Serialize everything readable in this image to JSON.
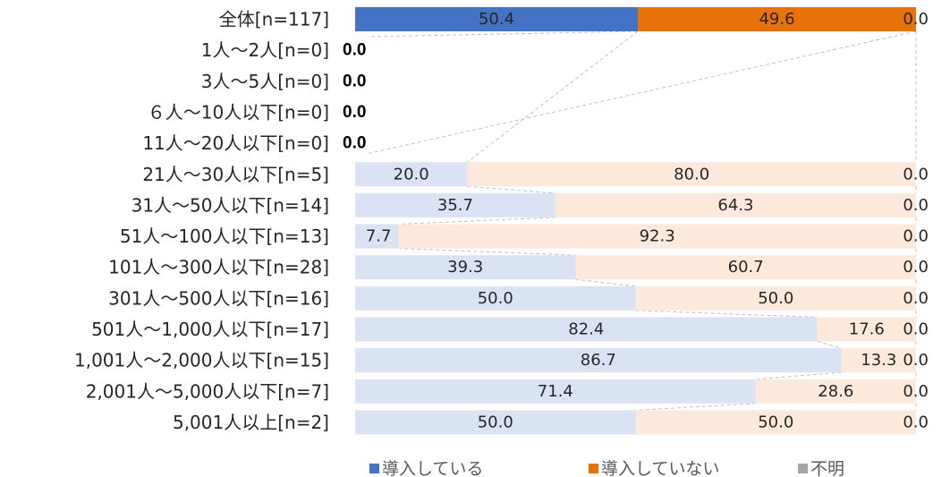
{
  "chart_data": {
    "type": "bar",
    "orientation": "horizontal",
    "stacked": "100%",
    "categories": [
      "全体[n=117]",
      "1人〜2人[n=0]",
      "3人〜5人[n=0]",
      "６人〜10人以下[n=0]",
      "11人〜20人以下[n=0]",
      "21人〜30人以下[n=5]",
      "31人〜50人以下[n=14]",
      "51人〜100人以下[n=13]",
      "101人〜300人以下[n=28]",
      "301人〜500人以下[n=16]",
      "501人〜1,000人以下[n=17]",
      "1,001人〜2,000人以下[n=15]",
      "2,001人〜5,000人以下[n=7]",
      "5,001人以上[n=2]"
    ],
    "series": [
      {
        "name": "導入している",
        "values": [
          50.4,
          0.0,
          0.0,
          0.0,
          0.0,
          20.0,
          35.7,
          7.7,
          39.3,
          50.0,
          82.4,
          86.7,
          71.4,
          50.0
        ]
      },
      {
        "name": "導入していない",
        "values": [
          49.6,
          0.0,
          0.0,
          0.0,
          0.0,
          80.0,
          64.3,
          92.3,
          60.7,
          50.0,
          17.6,
          13.3,
          28.6,
          50.0
        ]
      },
      {
        "name": "不明",
        "values": [
          0.0,
          0.0,
          0.0,
          0.0,
          0.0,
          0.0,
          0.0,
          0.0,
          0.0,
          0.0,
          0.0,
          0.0,
          0.0,
          0.0
        ]
      }
    ],
    "empty_rows_label": "0.0",
    "xlim": [
      0,
      100
    ],
    "legend_position": "bottom",
    "series_lines": true,
    "colors": {
      "total": [
        "#4472C4",
        "#E8710A",
        "#A5A5A5"
      ],
      "rows": [
        "#DAE3F3",
        "#FCE9DC",
        "#E7E7E7"
      ],
      "leader": "#BFBFBF",
      "legend": [
        "#4472C4",
        "#E8710A",
        "#A5A5A5"
      ]
    }
  }
}
